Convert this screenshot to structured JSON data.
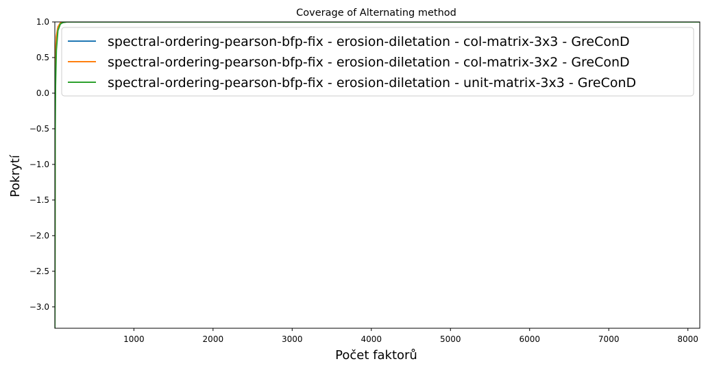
{
  "chart_data": {
    "type": "line",
    "title": "Coverage of Alternating method",
    "xlabel": "Počet faktorů",
    "ylabel": "Pokrytí",
    "xlim": [
      1,
      8150
    ],
    "ylim": [
      -3.3,
      1.0
    ],
    "xticks": [
      1000,
      2000,
      3000,
      4000,
      5000,
      6000,
      7000,
      8000
    ],
    "yticks": [
      -3.0,
      -2.5,
      -2.0,
      -1.5,
      -1.0,
      -0.5,
      0.0,
      0.5,
      1.0
    ],
    "xtick_labels": [
      "1000",
      "2000",
      "3000",
      "4000",
      "5000",
      "6000",
      "7000",
      "8000"
    ],
    "ytick_labels": [
      "−3.0",
      "−2.5",
      "−2.0",
      "−1.5",
      "−1.0",
      "−0.5",
      "0.0",
      "0.5",
      "1.0"
    ],
    "grid": false,
    "legend_position": "top-right",
    "series": [
      {
        "name": "spectral-ordering-pearson-bfp-fix - erosion-diletation - col-matrix-3x3 - GreConD",
        "color": "#1f77b4",
        "x": [
          1,
          5,
          10,
          20,
          40,
          70,
          100,
          150,
          200,
          8150
        ],
        "y": [
          -3.3,
          0.05,
          0.5,
          0.78,
          0.92,
          0.98,
          0.995,
          1.0,
          1.0,
          1.0
        ]
      },
      {
        "name": "spectral-ordering-pearson-bfp-fix - erosion-diletation - col-matrix-3x2 - GreConD",
        "color": "#ff7f0e",
        "x": [
          1,
          5,
          10,
          20,
          40,
          70,
          100,
          150,
          200,
          8150
        ],
        "y": [
          -3.3,
          0.1,
          0.55,
          0.8,
          0.93,
          0.985,
          0.997,
          1.0,
          1.0,
          1.0
        ]
      },
      {
        "name": "spectral-ordering-pearson-bfp-fix - erosion-diletation - unit-matrix-3x3 - GreConD",
        "color": "#2ca02c",
        "x": [
          1,
          5,
          10,
          20,
          40,
          70,
          100,
          150,
          200,
          8150
        ],
        "y": [
          -3.3,
          -0.6,
          0.1,
          0.6,
          0.88,
          0.97,
          0.99,
          1.0,
          1.0,
          1.0
        ]
      }
    ]
  }
}
